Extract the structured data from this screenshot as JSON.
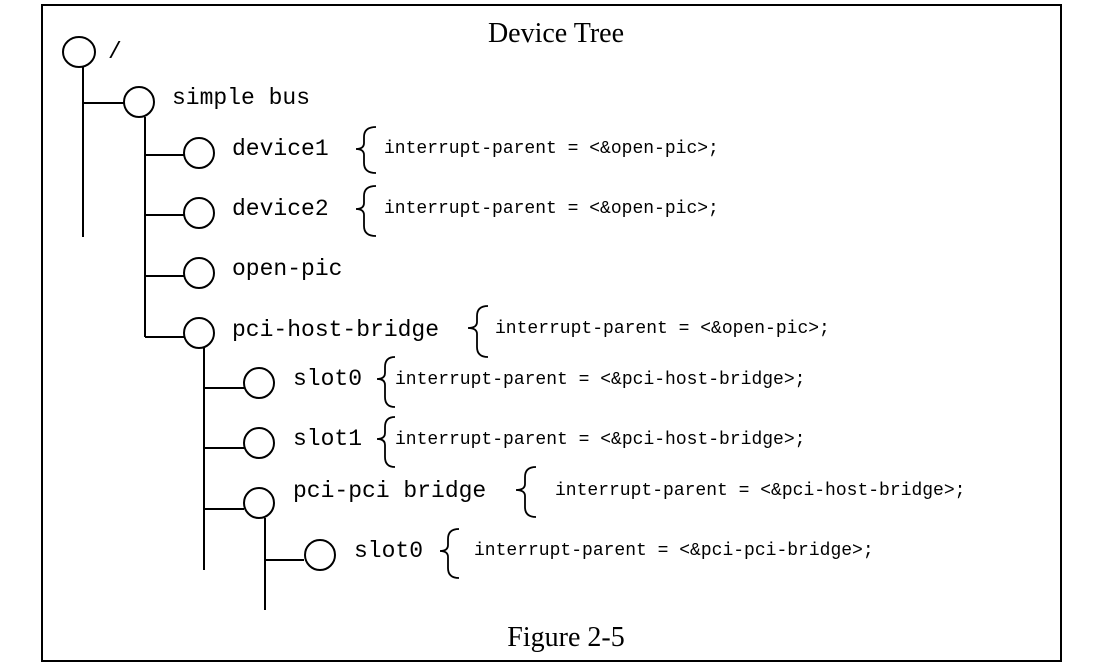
{
  "diagram": {
    "title": "Device Tree",
    "caption": "Figure 2-5",
    "nodes": [
      {
        "id": "root",
        "label": "/",
        "property": ""
      },
      {
        "id": "simple-bus",
        "label": "simple bus",
        "property": ""
      },
      {
        "id": "device1",
        "label": "device1",
        "property": "interrupt-parent = <&open-pic>;"
      },
      {
        "id": "device2",
        "label": "device2",
        "property": "interrupt-parent = <&open-pic>;"
      },
      {
        "id": "open-pic",
        "label": "open-pic",
        "property": ""
      },
      {
        "id": "pci-host-bridge",
        "label": "pci-host-bridge",
        "property": "interrupt-parent = <&open-pic>;"
      },
      {
        "id": "slot0-a",
        "label": "slot0",
        "property": "interrupt-parent = <&pci-host-bridge>;"
      },
      {
        "id": "slot1",
        "label": "slot1",
        "property": "interrupt-parent = <&pci-host-bridge>;"
      },
      {
        "id": "pci-pci-bridge",
        "label": "pci-pci bridge",
        "property": "interrupt-parent = <&pci-host-bridge>;"
      },
      {
        "id": "slot0-b",
        "label": "slot0",
        "property": "interrupt-parent = <&pci-pci-bridge>;"
      }
    ]
  }
}
